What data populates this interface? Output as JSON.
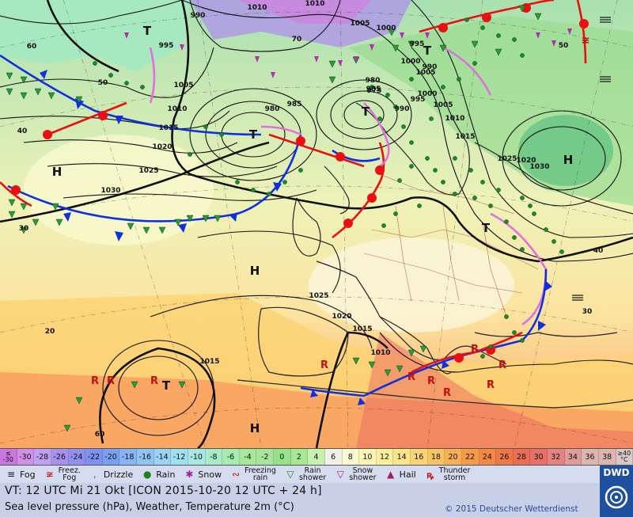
{
  "map": {
    "pressure_labels": [
      {
        "text": "1010"
      },
      {
        "text": "1010"
      },
      {
        "text": "1005"
      },
      {
        "text": "1000"
      },
      {
        "text": "995"
      },
      {
        "text": "990"
      },
      {
        "text": "1005"
      },
      {
        "text": "1010"
      },
      {
        "text": "1015"
      },
      {
        "text": "1020"
      },
      {
        "text": "1025"
      },
      {
        "text": "1030"
      },
      {
        "text": "995"
      },
      {
        "text": "1000"
      },
      {
        "text": "1005"
      },
      {
        "text": "980"
      },
      {
        "text": "975"
      },
      {
        "text": "985"
      },
      {
        "text": "985"
      },
      {
        "text": "980"
      },
      {
        "text": "990"
      },
      {
        "text": "995"
      },
      {
        "text": "1000"
      },
      {
        "text": "1005"
      },
      {
        "text": "1010"
      },
      {
        "text": "1015"
      },
      {
        "text": "1020"
      },
      {
        "text": "1025"
      },
      {
        "text": "1030"
      },
      {
        "text": "1025"
      },
      {
        "text": "1020"
      },
      {
        "text": "1015"
      },
      {
        "text": "1010"
      },
      {
        "text": "1015"
      },
      {
        "text": "990"
      },
      {
        "text": "70"
      },
      {
        "text": "60"
      },
      {
        "text": "50"
      },
      {
        "text": "40"
      },
      {
        "text": "30"
      },
      {
        "text": "20"
      },
      {
        "text": "60"
      },
      {
        "text": "50"
      },
      {
        "text": "40"
      },
      {
        "text": "30"
      }
    ],
    "centers": [
      {
        "text": "T"
      },
      {
        "text": "T"
      },
      {
        "text": "T"
      },
      {
        "text": "T"
      },
      {
        "text": "T"
      },
      {
        "text": "T"
      },
      {
        "text": "H"
      },
      {
        "text": "H"
      },
      {
        "text": "H"
      },
      {
        "text": "H"
      }
    ]
  },
  "scale": {
    "first_top": "≤",
    "first_bottom": "-30",
    "values": [
      "-30",
      "-28",
      "-26",
      "-24",
      "-22",
      "-20",
      "-18",
      "-16",
      "-14",
      "-12",
      "-10",
      "-8",
      "-6",
      "-4",
      "-2",
      "0",
      "2",
      "4",
      "6",
      "8",
      "10",
      "12",
      "14",
      "16",
      "18",
      "20",
      "22",
      "24",
      "26",
      "28",
      "30",
      "32",
      "34",
      "36",
      "38"
    ],
    "last_top": "≥40",
    "last_bottom": "°C",
    "colors": [
      "#c878dc",
      "#d090e8",
      "#c0a0f0",
      "#a890ee",
      "#9090f0",
      "#8090f0",
      "#7aa0f4",
      "#86b4f4",
      "#90c4f4",
      "#9ad4f4",
      "#a0e0ee",
      "#a8e8e0",
      "#a8ecc8",
      "#a6ecb0",
      "#a8e89c",
      "#a6e69a",
      "#98e08a",
      "#a8e894",
      "#c8f0b0",
      "#f0f0e8",
      "#fafad0",
      "#fcf6b4",
      "#fcee9c",
      "#fce488",
      "#fcd474",
      "#fac464",
      "#f8b054",
      "#f69a48",
      "#f48844",
      "#f07848",
      "#ec6c54",
      "#e87068",
      "#e48480",
      "#e09c98",
      "#dcb4b0"
    ]
  },
  "legend": {
    "fog": "Fog",
    "freezing_fog_1": "Freez.",
    "freezing_fog_2": "Fog",
    "drizzle": "Drizzle",
    "rain": "Rain",
    "snow": "Snow",
    "freezing_rain_1": "Freezing",
    "freezing_rain_2": "rain",
    "rain_shower_1": "Rain",
    "rain_shower_2": "shower",
    "snow_shower_1": "Snow",
    "snow_shower_2": "shower",
    "hail": "Hail",
    "thunder_1": "Thunder",
    "thunder_2": "storm"
  },
  "footer": {
    "valid_time": "VT: 12 UTC Mi  21 Okt [ICON 2015-10-20  12 UTC + 24 h]",
    "description": "Sea level pressure (hPa), Weather, Temperature 2m (°C)",
    "copyright": "© 2015 Deutscher Wetterdienst",
    "logo": "DWD"
  },
  "colors": {
    "cold_front": "#1030e0",
    "warm_front": "#e81010",
    "occlusion": "#e070e0",
    "isobar": "#111111"
  }
}
